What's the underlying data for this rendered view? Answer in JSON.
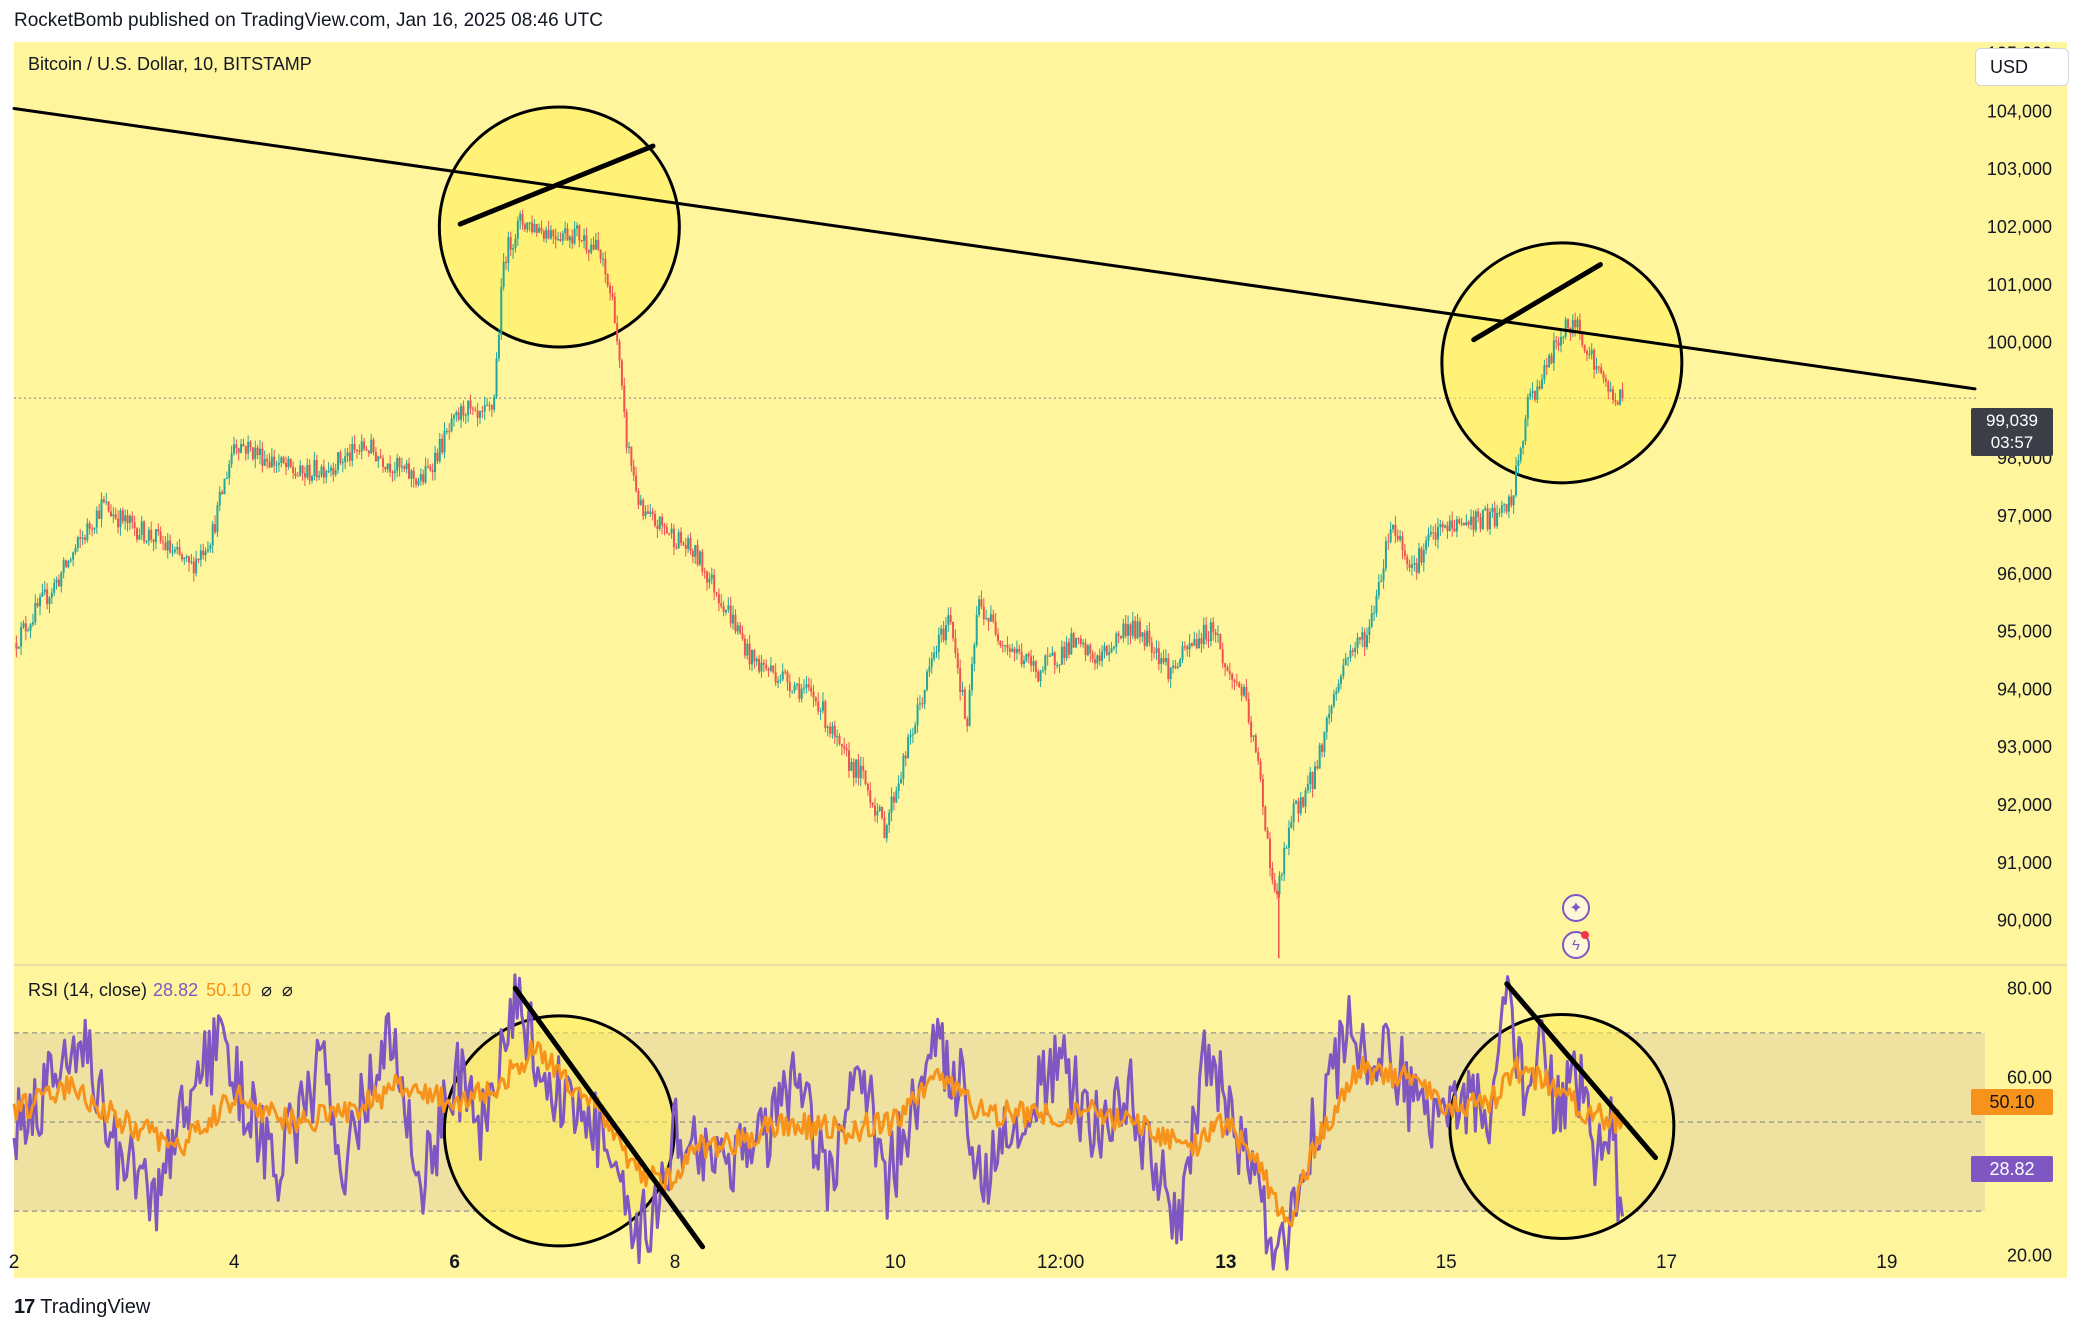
{
  "header": {
    "published": "RocketBomb published on TradingView.com, Jan 16, 2025 08:46 UTC"
  },
  "symbol_label": "Bitcoin / U.S. Dollar, 10, BITSTAMP",
  "currency_button": "USD",
  "last_price": {
    "price": "99,039",
    "countdown": "03:57"
  },
  "rsi_legend": {
    "label": "RSI (14, close)",
    "rsi_value": "28.82",
    "ma_value": "50.10",
    "sym1": "⌀",
    "sym2": "⌀"
  },
  "rsi_tags": {
    "ma": "50.10",
    "rsi": "28.82"
  },
  "footer": {
    "logo": "17",
    "brand": "TradingView"
  },
  "icons": {
    "top": "sparkle-icon",
    "bottom": "lightning-icon"
  },
  "colors": {
    "background": "#fff59d",
    "up_candle": "#26a69a",
    "down_candle": "#ef5350",
    "rsi_line": "#7e57c2",
    "rsi_ma": "#f7931a",
    "rsi_band": "#efe2a0",
    "circle_fill": "#ffee58"
  },
  "chart_data": [
    {
      "type": "candlestick",
      "title": "Bitcoin / U.S. Dollar, 10, BITSTAMP",
      "y_axis": {
        "ticks": [
          "105,000",
          "104,000",
          "103,000",
          "102,000",
          "101,000",
          "100,000",
          "98,000",
          "97,000",
          "96,000",
          "95,000",
          "94,000",
          "93,000",
          "92,000",
          "91,000",
          "90,000"
        ],
        "tick_values": [
          105000,
          104000,
          103000,
          102000,
          101000,
          100000,
          98000,
          97000,
          96000,
          95000,
          94000,
          93000,
          92000,
          91000,
          90000
        ],
        "range": [
          89250,
          105200
        ]
      },
      "x_axis": {
        "ticks": [
          "2",
          "4",
          "6",
          "8",
          "10",
          "12:00",
          "13",
          "15",
          "17",
          "19"
        ],
        "bold": [
          "6",
          "13"
        ],
        "tick_values": [
          2,
          4,
          6,
          8,
          10,
          11.5,
          13,
          15,
          17,
          19
        ],
        "range": [
          2.0,
          19.8
        ]
      },
      "price_path": [
        [
          2.0,
          94800
        ],
        [
          2.4,
          95900
        ],
        [
          2.8,
          97200
        ],
        [
          3.0,
          96900
        ],
        [
          3.3,
          96600
        ],
        [
          3.6,
          96100
        ],
        [
          3.8,
          96700
        ],
        [
          4.0,
          98300
        ],
        [
          4.3,
          98000
        ],
        [
          4.6,
          97700
        ],
        [
          4.9,
          97900
        ],
        [
          5.2,
          98200
        ],
        [
          5.5,
          97800
        ],
        [
          5.7,
          97600
        ],
        [
          5.9,
          98300
        ],
        [
          6.1,
          98900
        ],
        [
          6.2,
          98600
        ],
        [
          6.35,
          98900
        ],
        [
          6.45,
          101500
        ],
        [
          6.6,
          102100
        ],
        [
          6.9,
          101900
        ],
        [
          7.1,
          101900
        ],
        [
          7.3,
          101600
        ],
        [
          7.45,
          100600
        ],
        [
          7.55,
          98400
        ],
        [
          7.7,
          97000
        ],
        [
          7.9,
          96800
        ],
        [
          8.2,
          96300
        ],
        [
          8.5,
          95300
        ],
        [
          8.7,
          94500
        ],
        [
          9.0,
          94200
        ],
        [
          9.3,
          93800
        ],
        [
          9.5,
          92900
        ],
        [
          9.7,
          92500
        ],
        [
          9.9,
          91600
        ],
        [
          10.1,
          92900
        ],
        [
          10.35,
          94600
        ],
        [
          10.5,
          95300
        ],
        [
          10.65,
          93300
        ],
        [
          10.75,
          95500
        ],
        [
          11.0,
          94800
        ],
        [
          11.3,
          94300
        ],
        [
          11.6,
          94800
        ],
        [
          11.85,
          94500
        ],
        [
          12.1,
          95100
        ],
        [
          12.3,
          94900
        ],
        [
          12.5,
          94300
        ],
        [
          12.7,
          94800
        ],
        [
          12.9,
          95100
        ],
        [
          13.0,
          94300
        ],
        [
          13.15,
          94000
        ],
        [
          13.3,
          92600
        ],
        [
          13.45,
          90300
        ],
        [
          13.6,
          91800
        ],
        [
          13.8,
          92500
        ],
        [
          13.95,
          93700
        ],
        [
          14.1,
          94600
        ],
        [
          14.3,
          95000
        ],
        [
          14.5,
          96900
        ],
        [
          14.7,
          96100
        ],
        [
          14.85,
          96600
        ],
        [
          15.0,
          96800
        ],
        [
          15.2,
          96900
        ],
        [
          15.5,
          97000
        ],
        [
          15.6,
          97300
        ],
        [
          15.75,
          99000
        ],
        [
          15.9,
          99500
        ],
        [
          16.05,
          100200
        ],
        [
          16.2,
          100300
        ],
        [
          16.35,
          99600
        ],
        [
          16.5,
          99100
        ],
        [
          16.6,
          99039
        ]
      ],
      "last_price": 99039
    },
    {
      "type": "line",
      "title": "RSI (14, close)",
      "series": [
        {
          "name": "RSI",
          "last": 28.82
        },
        {
          "name": "RSI MA",
          "last": 50.1
        }
      ],
      "y_axis": {
        "ticks": [
          "80.00",
          "60.00",
          "40.00",
          "20.00"
        ],
        "tick_values": [
          80,
          60,
          40,
          20
        ],
        "range": [
          15,
          85
        ]
      },
      "band": [
        30,
        70
      ],
      "mid": 50,
      "rsi_path": [
        [
          2.0,
          50
        ],
        [
          2.4,
          60
        ],
        [
          2.6,
          72
        ],
        [
          2.9,
          44
        ],
        [
          3.3,
          32
        ],
        [
          3.6,
          58
        ],
        [
          3.9,
          68
        ],
        [
          4.2,
          48
        ],
        [
          4.4,
          40
        ],
        [
          4.8,
          62
        ],
        [
          5.0,
          42
        ],
        [
          5.4,
          70
        ],
        [
          5.7,
          36
        ],
        [
          6.0,
          60
        ],
        [
          6.3,
          48
        ],
        [
          6.55,
          80
        ],
        [
          6.8,
          60
        ],
        [
          7.0,
          56
        ],
        [
          7.3,
          48
        ],
        [
          7.5,
          36
        ],
        [
          7.6,
          20
        ],
        [
          7.8,
          30
        ],
        [
          8.0,
          48
        ],
        [
          8.4,
          42
        ],
        [
          8.8,
          46
        ],
        [
          9.1,
          58
        ],
        [
          9.4,
          36
        ],
        [
          9.7,
          64
        ],
        [
          9.9,
          34
        ],
        [
          10.2,
          56
        ],
        [
          10.4,
          66
        ],
        [
          10.6,
          58
        ],
        [
          10.8,
          38
        ],
        [
          11.1,
          52
        ],
        [
          11.5,
          62
        ],
        [
          11.8,
          48
        ],
        [
          12.1,
          58
        ],
        [
          12.4,
          36
        ],
        [
          12.6,
          30
        ],
        [
          12.8,
          62
        ],
        [
          13.0,
          56
        ],
        [
          13.2,
          40
        ],
        [
          13.4,
          26
        ],
        [
          13.55,
          20
        ],
        [
          13.7,
          42
        ],
        [
          13.9,
          56
        ],
        [
          14.1,
          70
        ],
        [
          14.4,
          64
        ],
        [
          14.6,
          60
        ],
        [
          14.8,
          50
        ],
        [
          15.0,
          58
        ],
        [
          15.2,
          54
        ],
        [
          15.45,
          52
        ],
        [
          15.55,
          82
        ],
        [
          15.7,
          58
        ],
        [
          15.9,
          66
        ],
        [
          16.0,
          52
        ],
        [
          16.2,
          60
        ],
        [
          16.35,
          42
        ],
        [
          16.5,
          48
        ],
        [
          16.6,
          28.82
        ]
      ],
      "ma_path": [
        [
          2.0,
          52
        ],
        [
          2.5,
          58
        ],
        [
          3.0,
          50
        ],
        [
          3.5,
          44
        ],
        [
          4.0,
          56
        ],
        [
          4.5,
          50
        ],
        [
          5.0,
          52
        ],
        [
          5.5,
          58
        ],
        [
          6.0,
          54
        ],
        [
          6.4,
          58
        ],
        [
          6.7,
          66
        ],
        [
          7.0,
          60
        ],
        [
          7.3,
          54
        ],
        [
          7.6,
          40
        ],
        [
          7.9,
          36
        ],
        [
          8.2,
          44
        ],
        [
          8.6,
          46
        ],
        [
          9.0,
          50
        ],
        [
          9.5,
          48
        ],
        [
          10.0,
          50
        ],
        [
          10.4,
          60
        ],
        [
          10.8,
          52
        ],
        [
          11.3,
          52
        ],
        [
          11.8,
          52
        ],
        [
          12.3,
          48
        ],
        [
          12.7,
          44
        ],
        [
          13.0,
          50
        ],
        [
          13.3,
          40
        ],
        [
          13.55,
          26
        ],
        [
          13.8,
          44
        ],
        [
          14.2,
          62
        ],
        [
          14.6,
          60
        ],
        [
          15.0,
          54
        ],
        [
          15.4,
          54
        ],
        [
          15.65,
          62
        ],
        [
          16.0,
          58
        ],
        [
          16.3,
          52
        ],
        [
          16.6,
          50.1
        ]
      ]
    }
  ]
}
